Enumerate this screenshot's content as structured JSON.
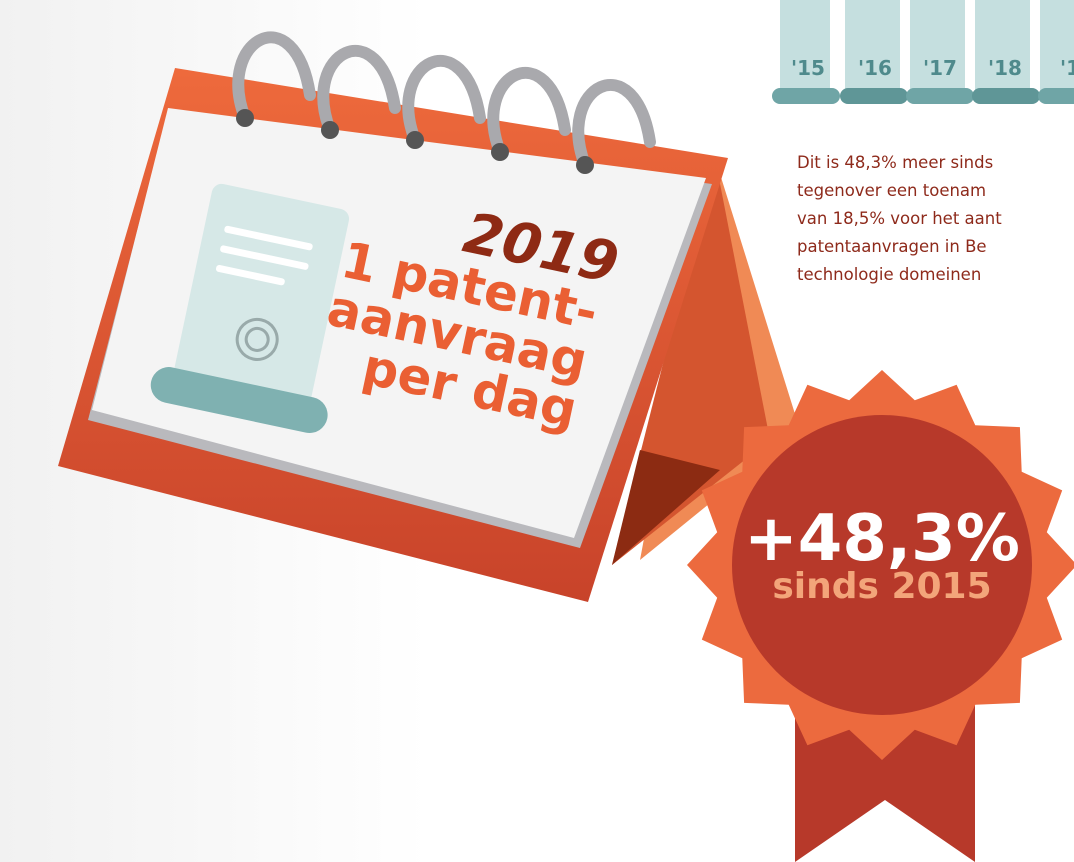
{
  "calendar": {
    "year": "2019",
    "lines": [
      "1 patent-",
      "aanvraag",
      "per dag"
    ]
  },
  "years": [
    "'15",
    "'16",
    "'17",
    "'18",
    "'1"
  ],
  "paragraph": [
    "Dit is 48,3% meer sinds",
    "tegenover een toenam",
    "van 18,5% voor het aant",
    "patentaanvragen in Be",
    "technologie domeinen"
  ],
  "badge": {
    "value": "+48,3%",
    "caption": "sinds 2015"
  }
}
